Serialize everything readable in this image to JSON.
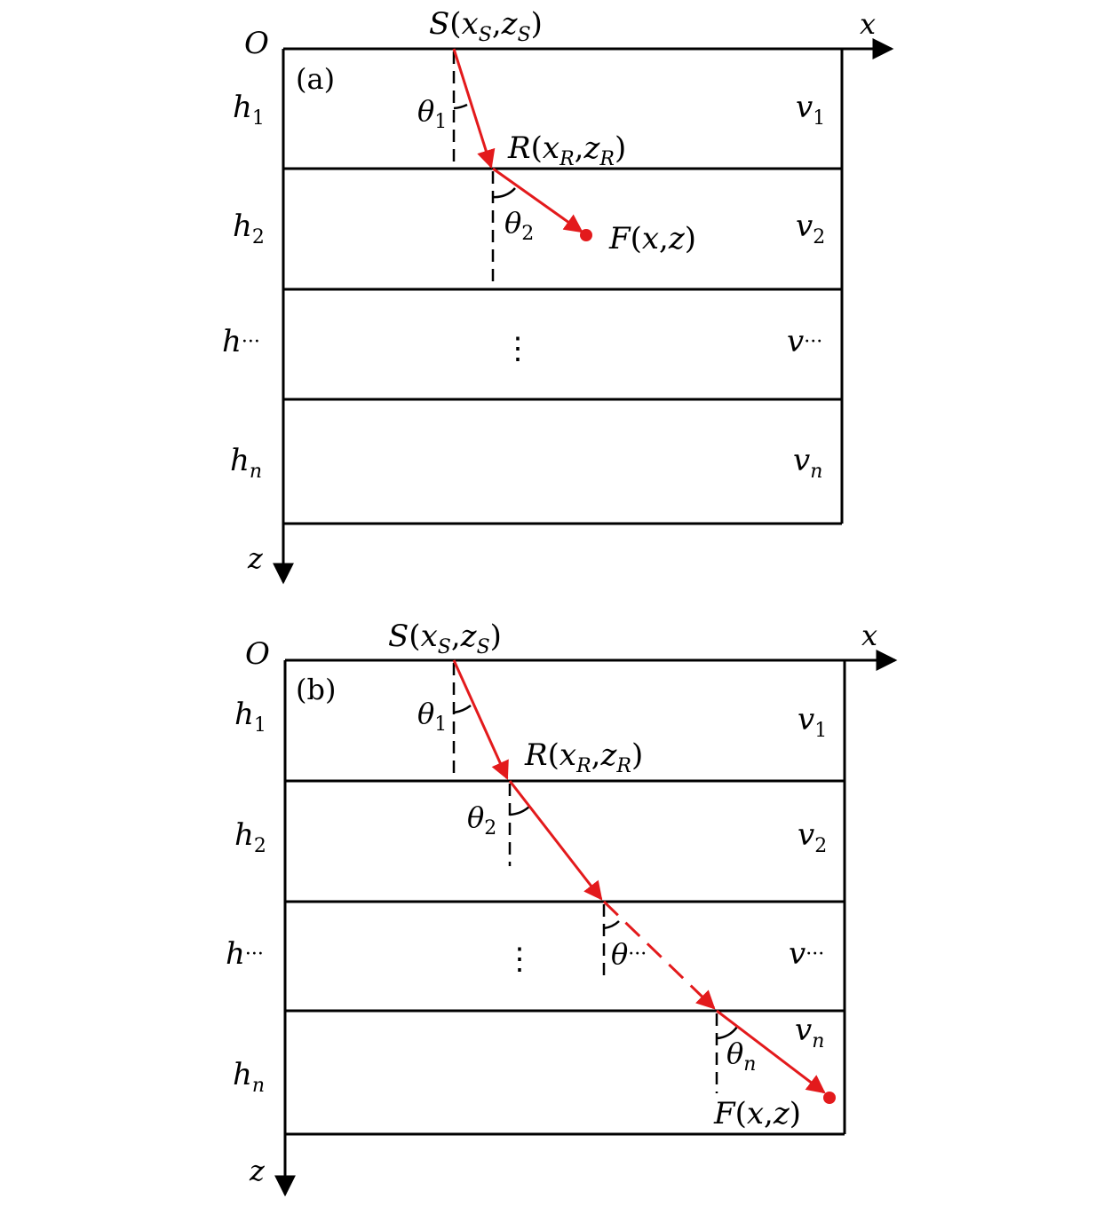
{
  "colors": {
    "ray": "#e31a1c",
    "line": "#000000",
    "background": "#ffffff"
  },
  "axes": {
    "origin": "O",
    "x": "x",
    "z": "z"
  },
  "panel_a": {
    "label": "(a)",
    "source": {
      "S": "S",
      "xS": "x",
      "xSsub": "S",
      "zS": "z",
      "zSsub": "S"
    },
    "refraction": {
      "R": "R",
      "xR": "x",
      "xRsub": "R",
      "zR": "z",
      "zRsub": "R"
    },
    "end": {
      "F": "F",
      "x": "x",
      "z": "z"
    },
    "angles": [
      {
        "sym": "θ",
        "sub": "1"
      },
      {
        "sym": "θ",
        "sub": "2"
      }
    ],
    "thickness": [
      {
        "sym": "h",
        "sub": "1"
      },
      {
        "sym": "h",
        "sub": "2"
      },
      {
        "sym": "h",
        "sub": "···"
      },
      {
        "sym": "h",
        "sub": "n"
      }
    ],
    "velocity": [
      {
        "sym": "v",
        "sub": "1"
      },
      {
        "sym": "v",
        "sub": "2"
      },
      {
        "sym": "v",
        "sub": "···"
      },
      {
        "sym": "v",
        "sub": "n"
      }
    ],
    "vdots": "⋮"
  },
  "panel_b": {
    "label": "(b)",
    "source": {
      "S": "S",
      "xS": "x",
      "xSsub": "S",
      "zS": "z",
      "zSsub": "S"
    },
    "refraction": {
      "R": "R",
      "xR": "x",
      "xRsub": "R",
      "zR": "z",
      "zRsub": "R"
    },
    "end": {
      "F": "F",
      "x": "x",
      "z": "z"
    },
    "angles": [
      {
        "sym": "θ",
        "sub": "1"
      },
      {
        "sym": "θ",
        "sub": "2"
      },
      {
        "sym": "θ",
        "sub": "···"
      },
      {
        "sym": "θ",
        "sub": "n"
      }
    ],
    "thickness": [
      {
        "sym": "h",
        "sub": "1"
      },
      {
        "sym": "h",
        "sub": "2"
      },
      {
        "sym": "h",
        "sub": "···"
      },
      {
        "sym": "h",
        "sub": "n"
      }
    ],
    "velocity": [
      {
        "sym": "v",
        "sub": "1"
      },
      {
        "sym": "v",
        "sub": "2"
      },
      {
        "sym": "v",
        "sub": "···"
      },
      {
        "sym": "v",
        "sub": "n"
      }
    ],
    "vdots": "⋮"
  }
}
